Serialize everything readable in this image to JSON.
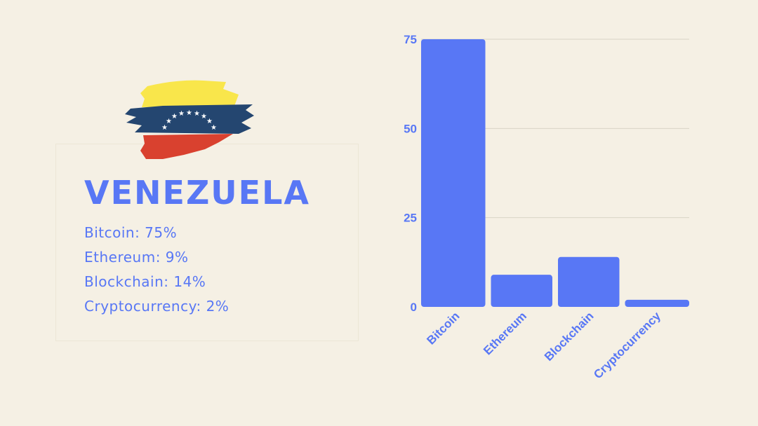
{
  "country": "VENEZUELA",
  "stats": [
    "Bitcoin: 75%",
    "Ethereum: 9%",
    "Blockchain: 14%",
    "Cryptocurrency: 2%"
  ],
  "colors": {
    "accent": "#5877f5",
    "background": "#f5f0e4",
    "flag_yellow": "#f9e64b",
    "flag_blue": "#244670",
    "flag_red": "#d9412f"
  },
  "chart_data": {
    "type": "bar",
    "categories": [
      "Bitcoin",
      "Ethereum",
      "Blockchain",
      "Cryptocurrency"
    ],
    "values": [
      75,
      9,
      14,
      2
    ],
    "ylim": [
      0,
      75
    ],
    "yticks": [
      0,
      25,
      50,
      75
    ],
    "grid": true,
    "color": "#5877f5"
  }
}
